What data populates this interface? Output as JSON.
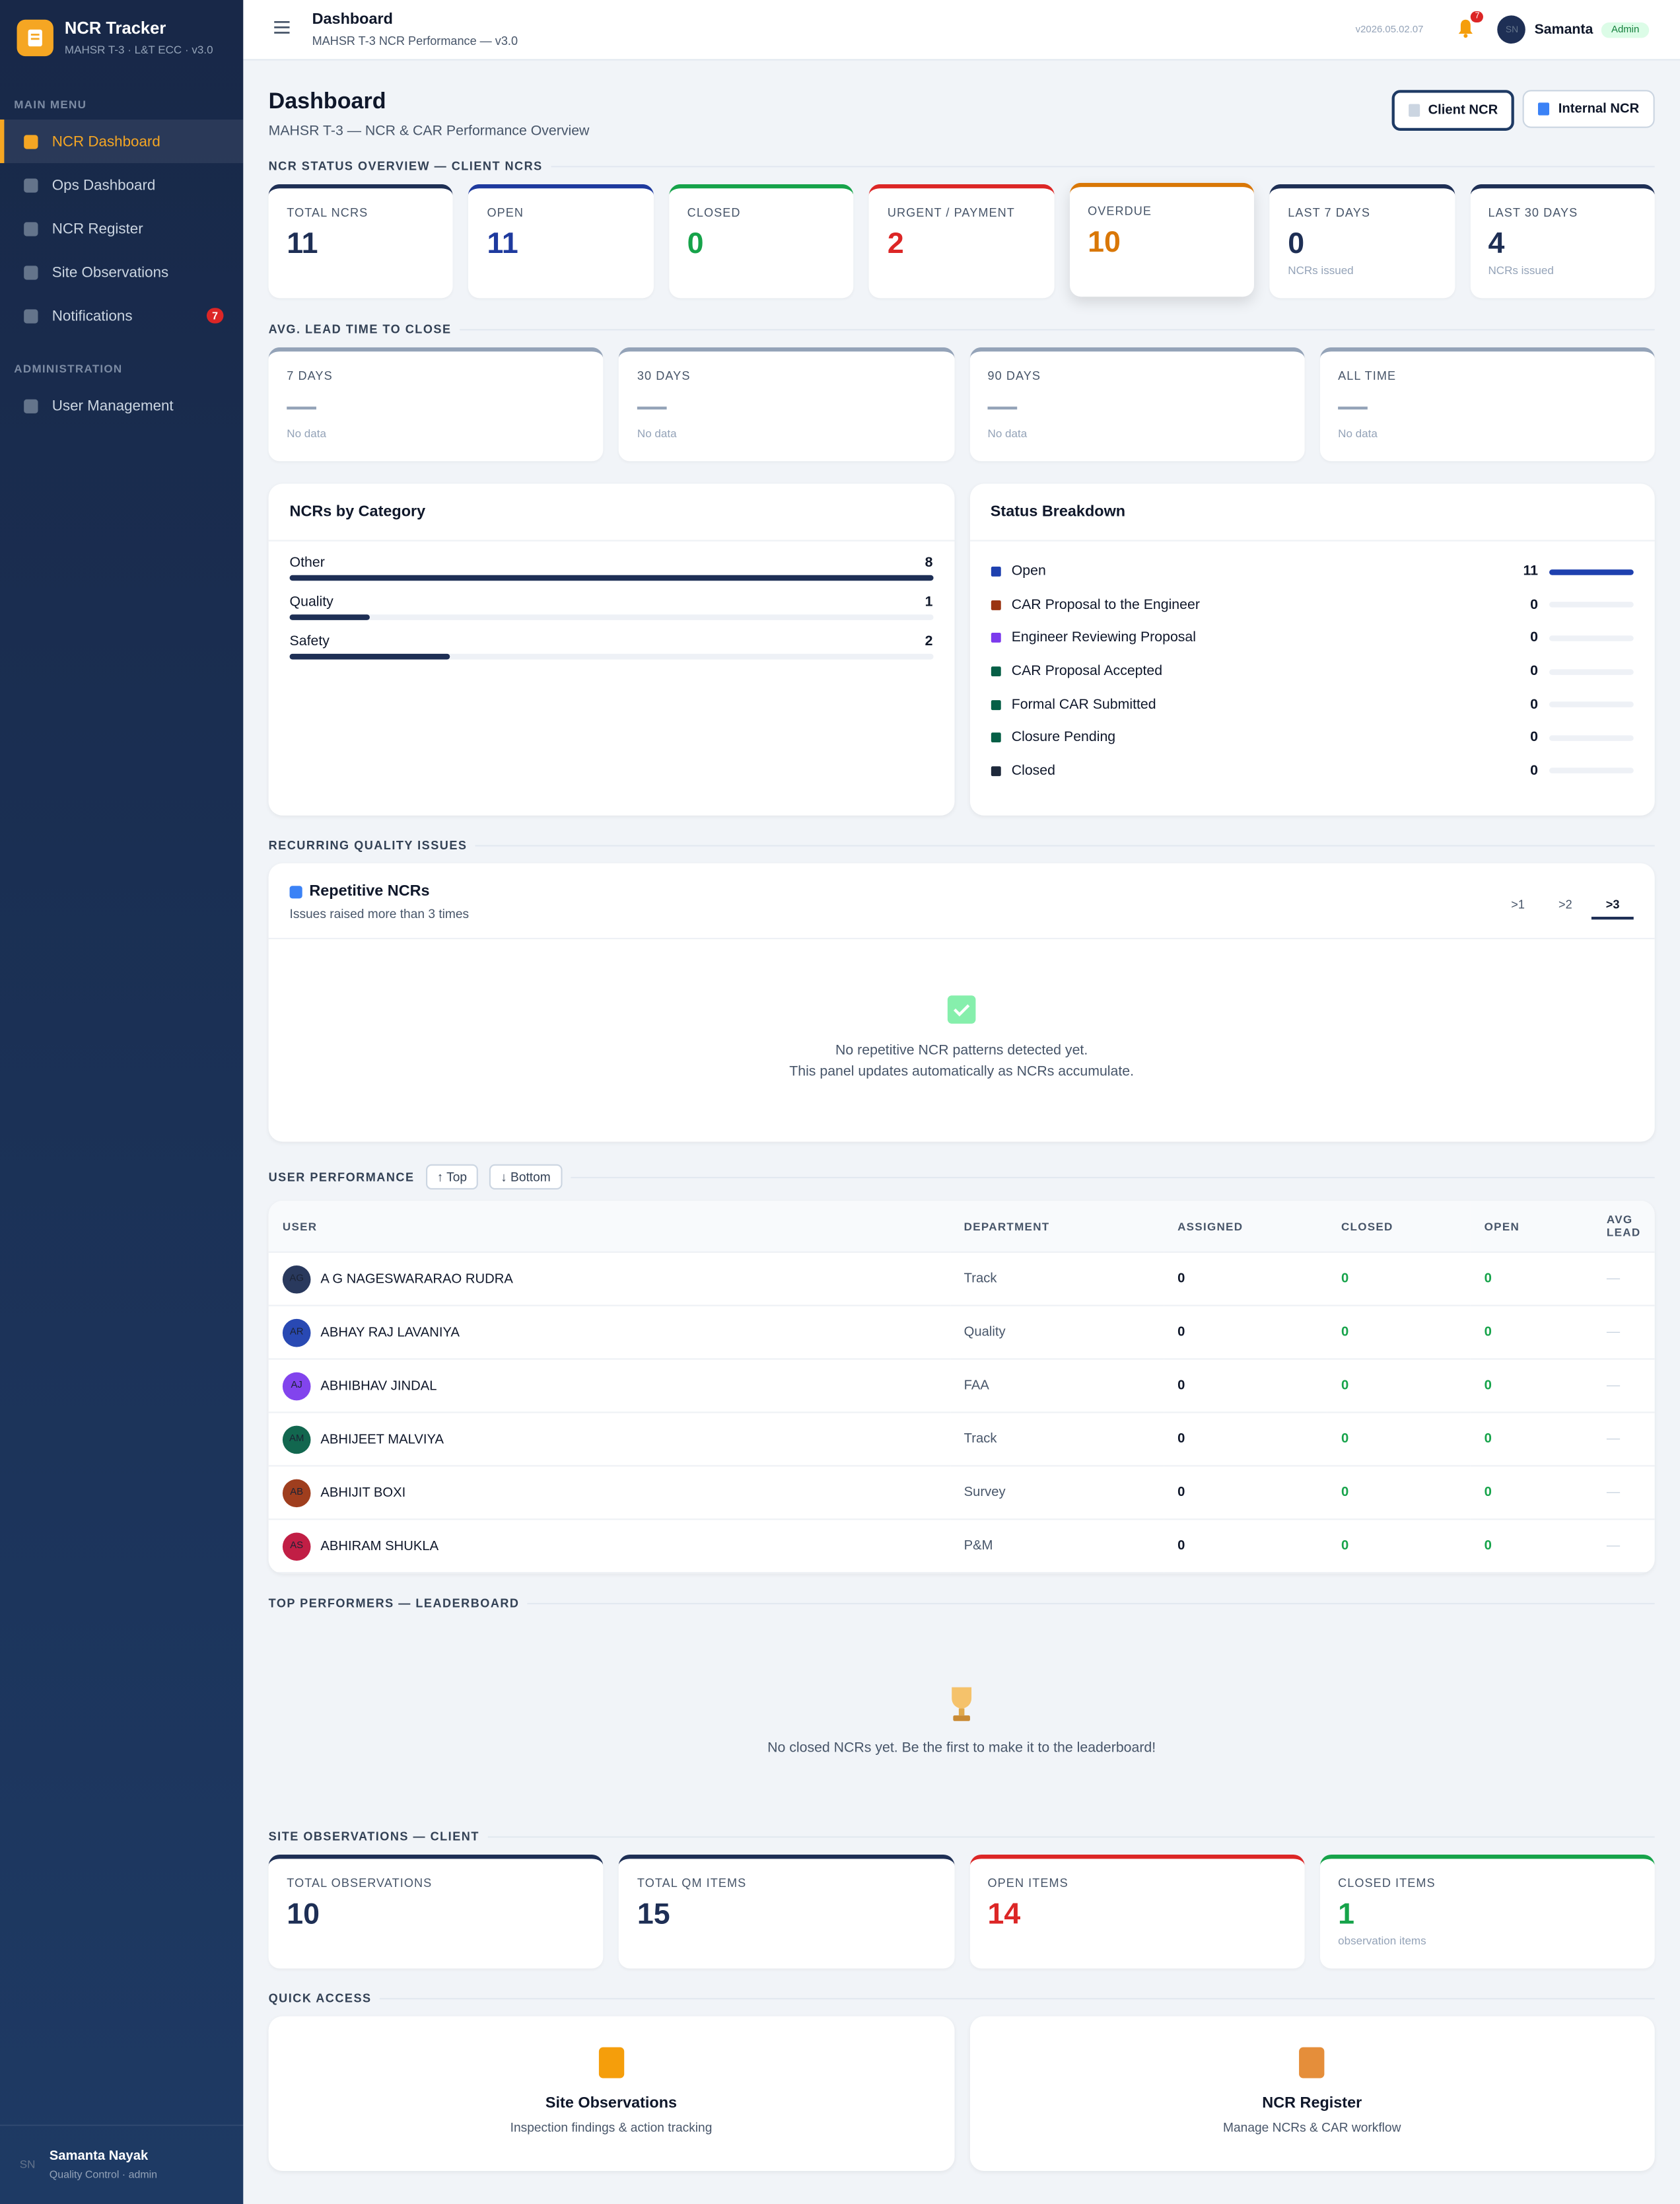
{
  "sidebar": {
    "brand": "NCR Tracker",
    "brand_sub": "MAHSR T-3 · L&T ECC · v3.0",
    "sections": [
      {
        "title": "MAIN MENU",
        "items": [
          {
            "label": "NCR Dashboard"
          },
          {
            "label": "Ops Dashboard"
          },
          {
            "label": "NCR Register"
          },
          {
            "label": "Site Observations"
          },
          {
            "label": "Notifications",
            "badge": 7
          }
        ]
      },
      {
        "title": "ADMINISTRATION",
        "items": [
          {
            "label": "User Management"
          }
        ]
      }
    ],
    "user": {
      "initials": "SN",
      "name": "Samanta Nayak",
      "role": "Quality Control · admin"
    }
  },
  "topbar": {
    "title": "Dashboard",
    "subtitle": "MAHSR T-3 NCR Performance — v3.0",
    "version": "v2026.05.02.07",
    "notif_count": 7,
    "avatar": "SN",
    "user": "Samanta",
    "role": "Admin"
  },
  "page": {
    "title": "Dashboard",
    "subtitle": "MAHSR T-3 — NCR & CAR Performance Overview",
    "buttons": [
      "Client NCR",
      "Internal NCR"
    ]
  },
  "status_overview": {
    "heading": "NCR STATUS OVERVIEW — CLIENT NCRS",
    "cards": [
      {
        "label": "TOTAL NCRS",
        "value": 11
      },
      {
        "label": "OPEN",
        "value": 11
      },
      {
        "label": "CLOSED",
        "value": 0
      },
      {
        "label": "URGENT / PAYMENT",
        "value": 2
      },
      {
        "label": "OVERDUE",
        "value": 10
      },
      {
        "label": "LAST 7 DAYS",
        "value": 0,
        "note": "NCRs issued"
      },
      {
        "label": "LAST 30 DAYS",
        "value": 4,
        "note": "NCRs issued"
      }
    ]
  },
  "lead_time": {
    "heading": "AVG. LEAD TIME TO CLOSE",
    "cards": [
      {
        "label": "7 DAYS",
        "value": "—",
        "note": "No data"
      },
      {
        "label": "30 DAYS",
        "value": "—",
        "note": "No data"
      },
      {
        "label": "90 DAYS",
        "value": "—",
        "note": "No data"
      },
      {
        "label": "ALL TIME",
        "value": "—",
        "note": "No data"
      }
    ]
  },
  "category": {
    "title": "NCRs by Category",
    "rows": [
      {
        "label": "Other",
        "value": 8
      },
      {
        "label": "Quality",
        "value": 1
      },
      {
        "label": "Safety",
        "value": 2
      }
    ]
  },
  "status_breakdown": {
    "title": "Status Breakdown",
    "rows": [
      {
        "label": "Open",
        "value": 11
      },
      {
        "label": "CAR Proposal to the Engineer",
        "value": 0
      },
      {
        "label": "Engineer Reviewing Proposal",
        "value": 0
      },
      {
        "label": "CAR Proposal Accepted",
        "value": 0
      },
      {
        "label": "Formal CAR Submitted",
        "value": 0
      },
      {
        "label": "Closure Pending",
        "value": 0
      },
      {
        "label": "Closed",
        "value": 0
      }
    ]
  },
  "recurring": {
    "heading": "RECURRING QUALITY ISSUES",
    "title": "Repetitive NCRs",
    "subtitle": "Issues raised more than 3 times",
    "tabs": [
      ">1",
      ">2",
      ">3"
    ],
    "empty": [
      "No repetitive NCR patterns detected yet.",
      "This panel updates automatically as NCRs accumulate."
    ]
  },
  "user_performance": {
    "heading": "USER PERFORMANCE",
    "buttons": [
      "↑ Top",
      "↓ Bottom"
    ],
    "columns": [
      "USER",
      "DEPARTMENT",
      "ASSIGNED",
      "CLOSED",
      "OPEN",
      "AVG LEAD"
    ],
    "rows": [
      {
        "initials": "AG",
        "name": "A G NAGESWARARAO RUDRA",
        "department": "Track",
        "assigned": 0,
        "closed": 0,
        "open": 0,
        "avg_lead": "—"
      },
      {
        "initials": "AR",
        "name": "ABHAY RAJ LAVANIYA",
        "department": "Quality",
        "assigned": 0,
        "closed": 0,
        "open": 0,
        "avg_lead": "—"
      },
      {
        "initials": "AJ",
        "name": "ABHIBHAV JINDAL",
        "department": "FAA",
        "assigned": 0,
        "closed": 0,
        "open": 0,
        "avg_lead": "—"
      },
      {
        "initials": "AM",
        "name": "ABHIJEET MALVIYA",
        "department": "Track",
        "assigned": 0,
        "closed": 0,
        "open": 0,
        "avg_lead": "—"
      },
      {
        "initials": "AB",
        "name": "ABHIJIT BOXI",
        "department": "Survey",
        "assigned": 0,
        "closed": 0,
        "open": 0,
        "avg_lead": "—"
      },
      {
        "initials": "AS",
        "name": "ABHIRAM SHUKLA",
        "department": "P&M",
        "assigned": 0,
        "closed": 0,
        "open": 0,
        "avg_lead": "—"
      }
    ]
  },
  "leaderboard": {
    "heading": "TOP PERFORMERS — LEADERBOARD",
    "empty": "No closed NCRs yet. Be the first to make it to the leaderboard!"
  },
  "site_observations": {
    "heading": "SITE OBSERVATIONS — CLIENT",
    "cards": [
      {
        "label": "TOTAL OBSERVATIONS",
        "value": 10
      },
      {
        "label": "TOTAL QM ITEMS",
        "value": 15
      },
      {
        "label": "OPEN ITEMS",
        "value": 14
      },
      {
        "label": "CLOSED ITEMS",
        "value": 1,
        "note": "observation items"
      }
    ]
  },
  "quick_access": {
    "heading": "QUICK ACCESS",
    "cards": [
      {
        "title": "Site Observations",
        "subtitle": "Inspection findings & action tracking"
      },
      {
        "title": "NCR Register",
        "subtitle": "Manage NCRs & CAR workflow"
      }
    ]
  }
}
